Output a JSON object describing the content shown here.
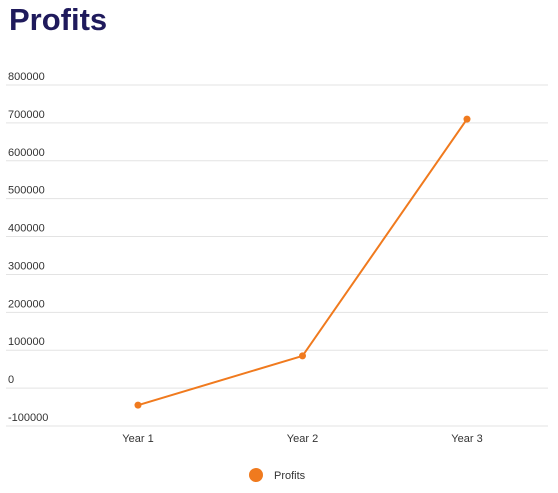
{
  "chart_data": {
    "type": "line",
    "title": "Profits",
    "categories": [
      "Year 1",
      "Year 2",
      "Year 3"
    ],
    "series": [
      {
        "name": "Profits",
        "values": [
          -45000,
          85000,
          710000
        ],
        "color": "#f07a1e"
      }
    ],
    "ylim": [
      -100000,
      800000
    ],
    "yticks": [
      "800000",
      "700000",
      "600000",
      "500000",
      "400000",
      "300000",
      "200000",
      "100000",
      "0",
      "-100000"
    ],
    "grid": true,
    "legend": "bottom-center"
  }
}
